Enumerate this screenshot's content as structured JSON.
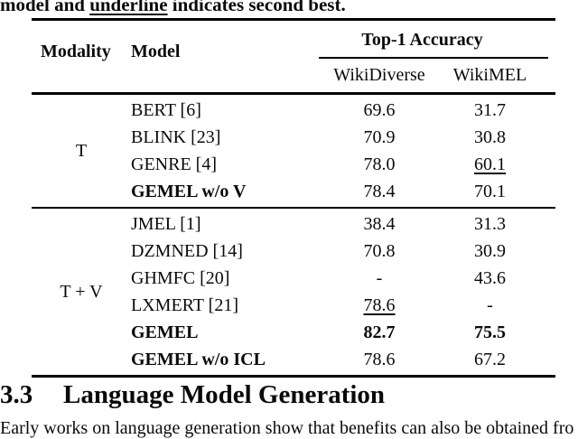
{
  "colors": {
    "text": "#0a0a0a",
    "background": "#ffffff",
    "rule": "#000000"
  },
  "caption": {
    "pre": "model and ",
    "underlined": "underline",
    "post": " indicates second best."
  },
  "table": {
    "headers": {
      "modality": "Modality",
      "model": "Model",
      "top1": "Top-1 Accuracy",
      "datasets": [
        "WikiDiverse",
        "WikiMEL"
      ]
    },
    "groups": [
      {
        "modality": "T",
        "rows": [
          {
            "model": "BERT [6]",
            "bold_model": false,
            "values": [
              {
                "text": "69.6"
              },
              {
                "text": "31.7"
              }
            ]
          },
          {
            "model": "BLINK [23]",
            "bold_model": false,
            "values": [
              {
                "text": "70.9"
              },
              {
                "text": "30.8"
              }
            ]
          },
          {
            "model": "GENRE [4]",
            "bold_model": false,
            "values": [
              {
                "text": "78.0"
              },
              {
                "text": "60.1",
                "underline": true
              }
            ]
          },
          {
            "model": "GEMEL w/o V",
            "bold_model": true,
            "values": [
              {
                "text": "78.4"
              },
              {
                "text": "70.1"
              }
            ]
          }
        ]
      },
      {
        "modality": "T + V",
        "rows": [
          {
            "model": "JMEL [1]",
            "bold_model": false,
            "values": [
              {
                "text": "38.4"
              },
              {
                "text": "31.3"
              }
            ]
          },
          {
            "model": "DZMNED [14]",
            "bold_model": false,
            "values": [
              {
                "text": "70.8"
              },
              {
                "text": "30.9"
              }
            ]
          },
          {
            "model": "GHMFC [20]",
            "bold_model": false,
            "values": [
              {
                "text": "-"
              },
              {
                "text": "43.6"
              }
            ]
          },
          {
            "model": "LXMERT [21]",
            "bold_model": false,
            "values": [
              {
                "text": "78.6",
                "underline": true
              },
              {
                "text": "-"
              }
            ]
          },
          {
            "model": "GEMEL",
            "bold_model": true,
            "values": [
              {
                "text": "82.7",
                "bold": true
              },
              {
                "text": "75.5",
                "bold": true
              }
            ]
          },
          {
            "model": "GEMEL w/o ICL",
            "bold_model": true,
            "values": [
              {
                "text": "78.6"
              },
              {
                "text": "67.2"
              }
            ]
          }
        ]
      }
    ]
  },
  "section": {
    "number": "3.3",
    "title": "Language Model Generation"
  },
  "body_text": "Early works on language generation show that benefits can also be obtained fro"
}
